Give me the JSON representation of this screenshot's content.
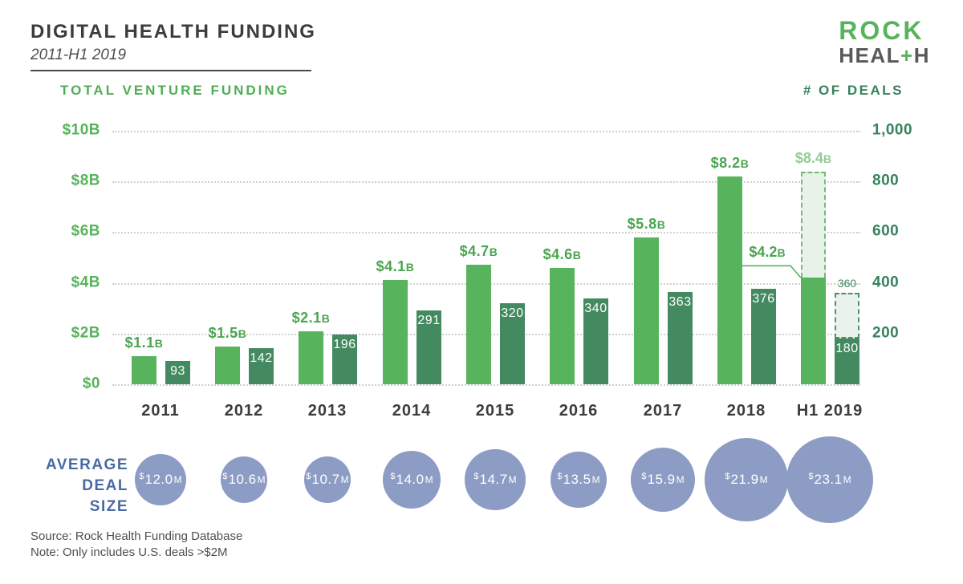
{
  "header": {
    "title": "DIGITAL HEALTH FUNDING",
    "subtitle": "2011-H1 2019",
    "logo": {
      "line1": "ROCK",
      "heal": "HEAL",
      "plus": "+",
      "h": "H"
    }
  },
  "axes": {
    "left_title": "TOTAL VENTURE FUNDING",
    "right_title": "# OF DEALS"
  },
  "chart_data": {
    "type": "bar",
    "title": "DIGITAL HEALTH FUNDING 2011-H1 2019",
    "categories": [
      "2011",
      "2012",
      "2013",
      "2014",
      "2015",
      "2016",
      "2017",
      "2018",
      "H1 2019"
    ],
    "series": [
      {
        "name": "Total venture funding",
        "unit": "$B",
        "color": "#57b35c",
        "values": [
          1.1,
          1.5,
          2.1,
          4.1,
          4.7,
          4.6,
          5.8,
          8.2,
          4.2
        ],
        "labels": [
          "$1.1B",
          "$1.5B",
          "$2.1B",
          "$4.1B",
          "$4.7B",
          "$4.6B",
          "$5.8B",
          "$8.2B",
          "$4.2B"
        ]
      },
      {
        "name": "# of deals",
        "color": "#438a61",
        "values": [
          93,
          142,
          196,
          291,
          320,
          340,
          363,
          376,
          180
        ],
        "labels": [
          "93",
          "142",
          "196",
          "291",
          "320",
          "340",
          "363",
          "376",
          "180"
        ]
      }
    ],
    "projected": {
      "category": "H1 2019",
      "funding_total": 8.4,
      "funding_label": "$8.4B",
      "deals_total": 360,
      "deals_label": "360"
    },
    "left_axis": {
      "label": "TOTAL VENTURE FUNDING",
      "max": 10,
      "ticks": [
        {
          "value": 10,
          "label": "$10B"
        },
        {
          "value": 8,
          "label": "$8B"
        },
        {
          "value": 6,
          "label": "$6B"
        },
        {
          "value": 4,
          "label": "$4B"
        },
        {
          "value": 2,
          "label": "$2B"
        },
        {
          "value": 0,
          "label": "$0"
        }
      ]
    },
    "right_axis": {
      "label": "# OF DEALS",
      "max": 1000,
      "ticks": [
        {
          "value": 1000,
          "label": "1,000"
        },
        {
          "value": 800,
          "label": "800"
        },
        {
          "value": 600,
          "label": "600"
        },
        {
          "value": 400,
          "label": "400"
        },
        {
          "value": 200,
          "label": "200"
        }
      ]
    },
    "grid": "dotted-horizontal",
    "legend": "none",
    "avg_deal_size": {
      "label_lines": [
        "AVERAGE",
        "DEAL",
        "SIZE"
      ],
      "bubble_color": "#8c9cc4",
      "currency": "$",
      "unit": "M",
      "values": [
        12.0,
        10.6,
        10.7,
        14.0,
        14.7,
        13.5,
        15.9,
        21.9,
        23.1
      ],
      "amounts": [
        "12.0",
        "10.6",
        "10.7",
        "14.0",
        "14.7",
        "13.5",
        "15.9",
        "21.9",
        "23.1"
      ],
      "labels": [
        "$12.0M",
        "$10.6M",
        "$10.7M",
        "$14.0M",
        "$14.7M",
        "$13.5M",
        "$15.9M",
        "$21.9M",
        "$23.1M"
      ]
    }
  },
  "footer": {
    "source": "Source: Rock Health Funding Database",
    "note": "Note: Only includes U.S. deals >$2M"
  }
}
